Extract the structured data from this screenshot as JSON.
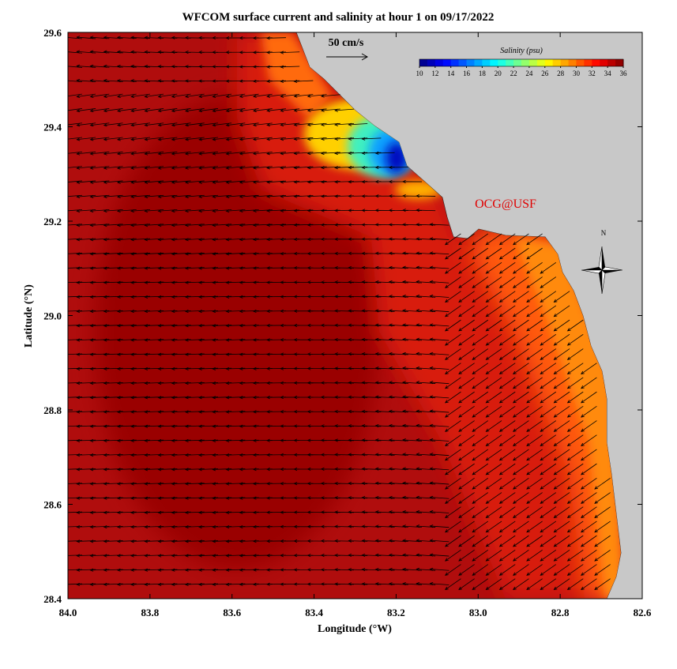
{
  "title": "WFCOM surface current and salinity at hour 1 on 09/17/2022",
  "map": {
    "xlabel": "Longitude (°W)",
    "ylabel": "Latitude (°N)",
    "xlim": [
      84.0,
      82.6
    ],
    "ylim": [
      28.4,
      29.6
    ],
    "xticks": [
      {
        "value": 84,
        "label": "84.0"
      },
      83.8,
      83.6,
      83.4,
      83.2,
      {
        "value": 83,
        "label": "83.0"
      },
      82.8,
      82.6
    ],
    "yticks": [
      28.4,
      28.6,
      28.8,
      {
        "value": 29,
        "label": "29.0"
      },
      29.2,
      29.4,
      29.6
    ]
  },
  "colorbar": {
    "title": "Salinity (psu)",
    "range": [
      10,
      36
    ],
    "ticks": [
      10,
      12,
      14,
      16,
      18,
      20,
      22,
      24,
      26,
      28,
      30,
      32,
      34,
      36
    ]
  },
  "scale_label": "50 cm/s",
  "credit": "OCG@USF",
  "north": "N"
}
